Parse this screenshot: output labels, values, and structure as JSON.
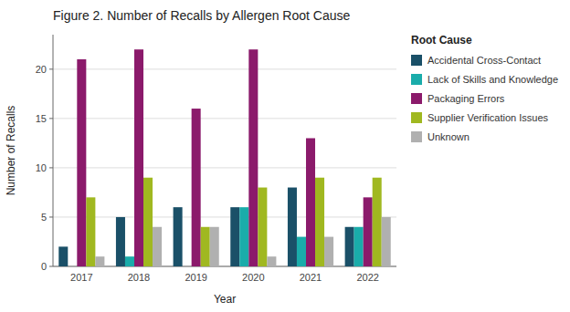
{
  "chart_data": {
    "type": "bar",
    "title": "Figure 2. Number of Recalls by Allergen Root Cause",
    "x_label": "Year",
    "y_label": "Number of Recalls",
    "legend_title": "Root Cause",
    "categories": [
      "2017",
      "2018",
      "2019",
      "2020",
      "2021",
      "2022"
    ],
    "series": [
      {
        "name": "Accidental Cross-Contact",
        "color": "#1a5068",
        "values": [
          2,
          5,
          6,
          6,
          8,
          4
        ]
      },
      {
        "name": "Lack of Skills and Knowledge",
        "color": "#1aacaa",
        "values": [
          0,
          1,
          0,
          6,
          3,
          4
        ]
      },
      {
        "name": "Packaging Errors",
        "color": "#8b1a6b",
        "values": [
          21,
          22,
          16,
          22,
          13,
          7
        ]
      },
      {
        "name": "Supplier Verification Issues",
        "color": "#a0b820",
        "values": [
          7,
          9,
          4,
          8,
          9,
          9
        ]
      },
      {
        "name": "Unknown",
        "color": "#b0b0b0",
        "values": [
          1,
          4,
          4,
          1,
          3,
          5
        ]
      }
    ],
    "ylim": [
      0,
      23.5
    ],
    "yticks": [
      0,
      5,
      10,
      15,
      20
    ],
    "grid": true,
    "legend": "right"
  }
}
